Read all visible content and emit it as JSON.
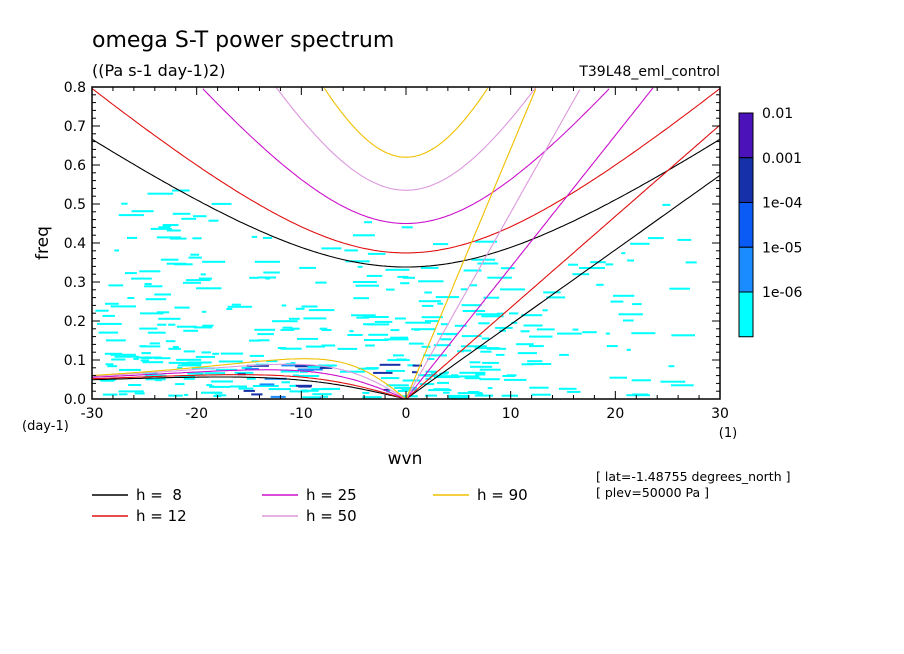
{
  "chart_data": {
    "type": "line",
    "title": "omega S-T power spectrum",
    "subtitle": "((Pa s-1 day-1)2)",
    "run_label": "T39L48_eml_control",
    "xlabel": "wvn",
    "ylabel": "freq",
    "x_unit": "(1)",
    "y_unit": "(day-1)",
    "xlim": [
      -30,
      30
    ],
    "ylim": [
      0,
      0.8
    ],
    "x_ticks": [
      -30,
      -20,
      -10,
      0,
      10,
      20,
      30
    ],
    "x_tick_labels": [
      "-30",
      "-20",
      "-10",
      "0",
      "10",
      "20",
      "30"
    ],
    "y_ticks": [
      0,
      0.1,
      0.2,
      0.3,
      0.4,
      0.5,
      0.6,
      0.7,
      0.8
    ],
    "y_tick_labels": [
      "0.0",
      "0.1",
      "0.2",
      "0.3",
      "0.4",
      "0.5",
      "0.6",
      "0.7",
      "0.8"
    ],
    "colorbar": {
      "labels": [
        "0.01",
        "0.001",
        "1e-04",
        "1e-05",
        "1e-06"
      ],
      "colors": [
        "#4a12b8",
        "#1530a8",
        "#0a5af5",
        "#1a8cff",
        "#00ffff"
      ]
    },
    "shading_colors": {
      "low": "#00ffff",
      "mid": "#1a8cff",
      "high": "#1530a8"
    },
    "series": [
      {
        "name": "h =  8",
        "h": 8,
        "color": "#000000"
      },
      {
        "name": "h = 12",
        "h": 12,
        "color": "#e01010"
      },
      {
        "name": "h = 25",
        "h": 25,
        "color": "#cc11cc"
      },
      {
        "name": "h = 50",
        "h": 50,
        "color": "#dd99dd"
      },
      {
        "name": "h = 90",
        "h": 90,
        "color": "#f0c000"
      }
    ],
    "legend": [
      [
        {
          "label": "h =  8",
          "color": "#000000"
        },
        {
          "label": "h = 25",
          "color": "#cc11cc"
        },
        {
          "label": "h = 90",
          "color": "#f0c000"
        }
      ],
      [
        {
          "label": "h = 12",
          "color": "#e01010"
        },
        {
          "label": "h = 50",
          "color": "#dd99dd"
        }
      ]
    ],
    "annotations": [
      "[ lat=-1.48755 degrees_north ]",
      "[ plev=50000 Pa ]"
    ]
  }
}
